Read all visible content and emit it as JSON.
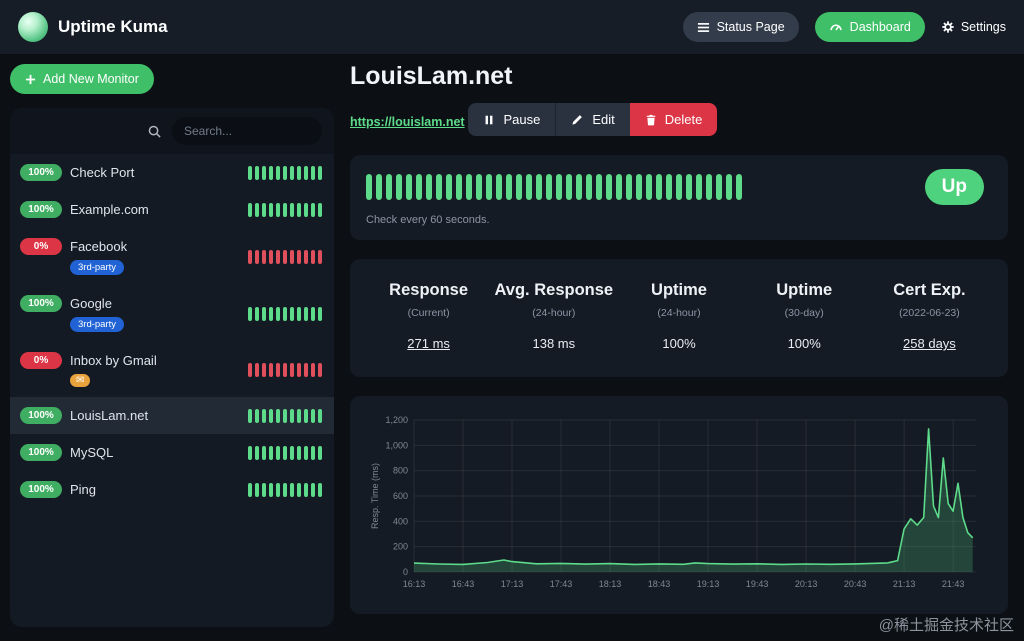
{
  "colors": {
    "primary_green": "#5ddb8a",
    "button_green": "#3fbf68",
    "badge_up_green": "#3fae62",
    "danger_red": "#dc3545",
    "down_beat_red": "#e0505c",
    "tag_blue": "#2163d4",
    "gmail_orange": "#e8a33d",
    "background": "#0c1015",
    "card_background": "#151b24"
  },
  "header": {
    "app_name": "Uptime Kuma",
    "logo_icon": "uptime-kuma-logo",
    "nav": {
      "status_page": {
        "label": "Status Page",
        "icon": "list-icon"
      },
      "dashboard": {
        "label": "Dashboard",
        "icon": "gauge-icon"
      },
      "settings": {
        "label": "Settings",
        "icon": "gear-icon"
      }
    }
  },
  "sidebar": {
    "add_button": {
      "label": "Add New Monitor",
      "icon": "plus-icon"
    },
    "search": {
      "placeholder": "Search...",
      "value": "",
      "icon": "search-icon"
    },
    "beats_per_row": 11,
    "monitors": [
      {
        "uptime": "100%",
        "status": "up",
        "name": "Check Port"
      },
      {
        "uptime": "100%",
        "status": "up",
        "name": "Example.com"
      },
      {
        "uptime": "0%",
        "status": "down",
        "name": "Facebook",
        "tag": "3rd-party"
      },
      {
        "uptime": "100%",
        "status": "up",
        "name": "Google",
        "tag": "3rd-party"
      },
      {
        "uptime": "0%",
        "status": "down",
        "name": "Inbox by Gmail",
        "tag_icon": "gmail-icon"
      },
      {
        "uptime": "100%",
        "status": "up",
        "name": "LouisLam.net",
        "selected": true
      },
      {
        "uptime": "100%",
        "status": "up",
        "name": "MySQL"
      },
      {
        "uptime": "100%",
        "status": "up",
        "name": "Ping"
      }
    ]
  },
  "main": {
    "title": "LouisLam.net",
    "url": "https://louislam.net",
    "actions": {
      "pause": {
        "label": "Pause",
        "icon": "pause-icon"
      },
      "edit": {
        "label": "Edit",
        "icon": "pencil-icon"
      },
      "delete": {
        "label": "Delete",
        "icon": "trash-icon"
      }
    },
    "heartbeat": {
      "beat_count": 38,
      "status_label": "Up",
      "interval_text": "Check every 60 seconds."
    },
    "stats": [
      {
        "title": "Response",
        "subtitle": "(Current)",
        "value": "271 ms",
        "link": true
      },
      {
        "title": "Avg. Response",
        "subtitle": "(24-hour)",
        "value": "138 ms",
        "link": false
      },
      {
        "title": "Uptime",
        "subtitle": "(24-hour)",
        "value": "100%",
        "link": false
      },
      {
        "title": "Uptime",
        "subtitle": "(30-day)",
        "value": "100%",
        "link": false
      },
      {
        "title": "Cert Exp.",
        "subtitle": "(2022-06-23)",
        "value": "258 days",
        "link": true
      }
    ]
  },
  "chart_data": {
    "type": "area",
    "title": "",
    "xlabel": "",
    "ylabel": "Resp. Time (ms)",
    "ylim": [
      0,
      1200
    ],
    "yticks": [
      0,
      200,
      400,
      600,
      800,
      1000,
      1200
    ],
    "ytick_labels": [
      "0",
      "200",
      "400",
      "600",
      "800",
      "1,000",
      "1,200"
    ],
    "x_ticks": [
      "16:13",
      "16:43",
      "17:13",
      "17:43",
      "18:13",
      "18:43",
      "19:13",
      "19:43",
      "20:13",
      "20:43",
      "21:13",
      "21:43"
    ],
    "xtick_pos": [
      0,
      30,
      60,
      90,
      120,
      150,
      180,
      210,
      240,
      270,
      300,
      330
    ],
    "xmax": 344,
    "grid": true,
    "legend": "none",
    "series": [
      {
        "name": "Resp. Time (ms)",
        "color": "#5ddb8a",
        "x": [
          0,
          15,
          30,
          45,
          55,
          60,
          75,
          90,
          105,
          120,
          135,
          150,
          165,
          172,
          180,
          195,
          210,
          225,
          240,
          255,
          270,
          280,
          290,
          296,
          300,
          304,
          308,
          312,
          315,
          318,
          321,
          324,
          327,
          330,
          333,
          336,
          339,
          342
        ],
        "y": [
          70,
          63,
          60,
          75,
          95,
          82,
          65,
          68,
          62,
          66,
          60,
          64,
          61,
          72,
          66,
          62,
          65,
          60,
          63,
          61,
          64,
          68,
          72,
          90,
          340,
          420,
          370,
          430,
          1130,
          520,
          430,
          900,
          540,
          480,
          700,
          430,
          310,
          270
        ]
      }
    ]
  },
  "watermark": "@稀土掘金技术社区"
}
